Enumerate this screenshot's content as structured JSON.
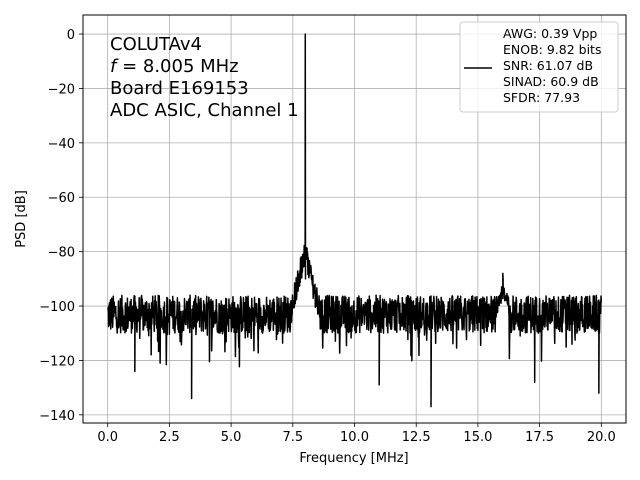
{
  "chart_data": {
    "type": "line",
    "xlabel": "Frequency [MHz]",
    "ylabel": "PSD [dB]",
    "xlim": [
      -1.0,
      21.0
    ],
    "ylim": [
      -143.0,
      7.0
    ],
    "xticks": [
      0.0,
      2.5,
      5.0,
      7.5,
      10.0,
      12.5,
      15.0,
      17.5,
      20.0
    ],
    "xtick_labels": [
      "0.0",
      "2.5",
      "5.0",
      "7.5",
      "10.0",
      "12.5",
      "15.0",
      "17.5",
      "20.0"
    ],
    "yticks": [
      0,
      -20,
      -40,
      -60,
      -80,
      -100,
      -120,
      -140
    ],
    "ytick_labels": [
      "0",
      "−20",
      "−40",
      "−60",
      "−80",
      "−100",
      "−120",
      "−140"
    ],
    "grid": true,
    "color": "#000000",
    "annotation_lines": [
      {
        "text": "COLUTAv4"
      },
      {
        "italic": "f",
        "text": " = 8.005 MHz"
      },
      {
        "text": "Board E169153"
      },
      {
        "text": "ADC ASIC, Channel 1"
      }
    ],
    "legend": {
      "placement": "top-right",
      "lines": [
        "AWG: 0.39 Vpp",
        "ENOB: 9.82 bits",
        "SNR: 61.07 dB",
        "SINAD: 60.9 dB",
        "SFDR: 77.93"
      ]
    },
    "series": [
      {
        "noise_floor_db": -103,
        "noise_min_db": -137,
        "noise_max_db": -87,
        "x_start": 0.0,
        "x_end": 20.0,
        "peaks": [
          {
            "x": 8.005,
            "y": 0.0
          },
          {
            "x": 16.01,
            "y": -88.0
          }
        ],
        "deep_dips": [
          {
            "x": 3.4,
            "y": -134.0
          },
          {
            "x": 13.1,
            "y": -137.0
          },
          {
            "x": 11.0,
            "y": -129.0
          },
          {
            "x": 17.3,
            "y": -128.0
          },
          {
            "x": 19.9,
            "y": -132.0
          },
          {
            "x": 1.1,
            "y": -124.0
          }
        ]
      }
    ]
  }
}
